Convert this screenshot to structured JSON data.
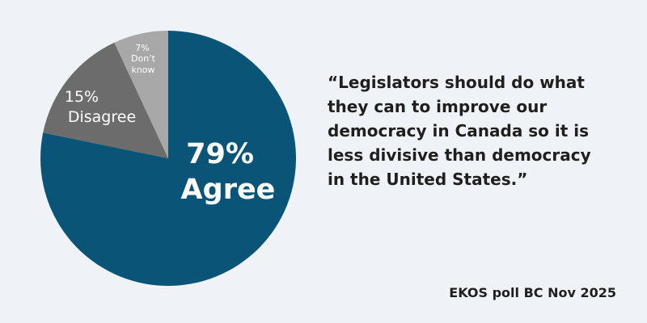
{
  "chart_data": {
    "type": "pie",
    "slices": [
      {
        "label": "Agree",
        "percent_label": "79%",
        "value": 79,
        "color": "#0a5577"
      },
      {
        "label": "Disagree",
        "percent_label": "15%",
        "value": 15,
        "color": "#6c6c6c"
      },
      {
        "label": "Don’t know",
        "percent_label": "7%",
        "value": 7,
        "color": "#a8a8a8"
      }
    ]
  },
  "quote": {
    "lines": [
      "“Legislators should do what",
      "they can to improve our",
      "democracy in Canada so it is",
      "less divisive than democracy",
      "in the United States.”"
    ]
  },
  "source": "EKOS poll BC Nov 2025"
}
